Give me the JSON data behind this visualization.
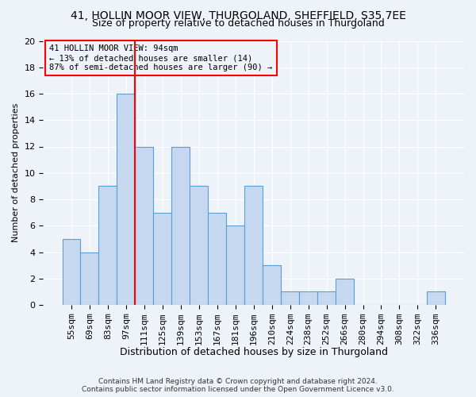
{
  "title": "41, HOLLIN MOOR VIEW, THURGOLAND, SHEFFIELD, S35 7EE",
  "subtitle": "Size of property relative to detached houses in Thurgoland",
  "xlabel": "Distribution of detached houses by size in Thurgoland",
  "ylabel": "Number of detached properties",
  "footer_line1": "Contains HM Land Registry data © Crown copyright and database right 2024.",
  "footer_line2": "Contains public sector information licensed under the Open Government Licence v3.0.",
  "categories": [
    "55sqm",
    "69sqm",
    "83sqm",
    "97sqm",
    "111sqm",
    "125sqm",
    "139sqm",
    "153sqm",
    "167sqm",
    "181sqm",
    "196sqm",
    "210sqm",
    "224sqm",
    "238sqm",
    "252sqm",
    "266sqm",
    "280sqm",
    "294sqm",
    "308sqm",
    "322sqm",
    "336sqm"
  ],
  "values": [
    5,
    4,
    9,
    16,
    12,
    7,
    12,
    9,
    7,
    6,
    9,
    3,
    1,
    1,
    1,
    2,
    0,
    0,
    0,
    0,
    1
  ],
  "bar_color": "#c5d8f0",
  "bar_edge_color": "#5a9fd4",
  "ylim": [
    0,
    20
  ],
  "yticks": [
    0,
    2,
    4,
    6,
    8,
    10,
    12,
    14,
    16,
    18,
    20
  ],
  "property_label": "41 HOLLIN MOOR VIEW: 94sqm",
  "annotation_line1": "← 13% of detached houses are smaller (14)",
  "annotation_line2": "87% of semi-detached houses are larger (90) →",
  "red_line_index": 3,
  "background_color": "#eef2f9",
  "grid_color": "#ffffff",
  "title_fontsize": 10,
  "subtitle_fontsize": 9,
  "ylabel_fontsize": 8,
  "xlabel_fontsize": 9,
  "tick_fontsize": 8,
  "annot_fontsize": 7.5,
  "footer_fontsize": 6.5
}
